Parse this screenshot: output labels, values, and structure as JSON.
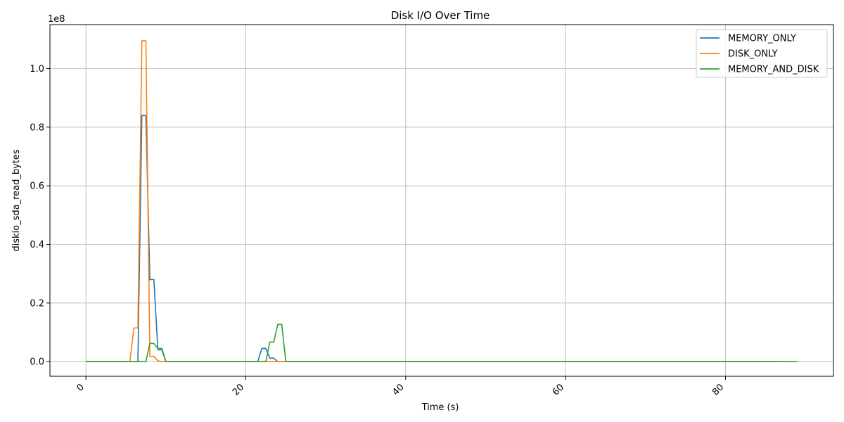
{
  "chart_data": {
    "type": "line",
    "title": "Disk I/O Over Time",
    "xlabel": "Time (s)",
    "ylabel": "diskio_sda_read_bytes",
    "y_offset_text": "1e8",
    "xlim": [
      -4.5,
      93.5
    ],
    "ylim": [
      -0.05,
      1.15
    ],
    "x_ticks": [
      0,
      20,
      40,
      60,
      80
    ],
    "x_tick_labels": [
      "0",
      "20",
      "40",
      "60",
      "80"
    ],
    "x_tick_rotation": 45,
    "y_ticks": [
      0.0,
      0.2,
      0.4,
      0.6,
      0.8,
      1.0
    ],
    "y_tick_labels": [
      "0.0",
      "0.2",
      "0.4",
      "0.6",
      "0.8",
      "1.0"
    ],
    "grid": true,
    "legend_position": "top-right",
    "series": [
      {
        "name": "MEMORY_ONLY",
        "color": "#1f77b4",
        "points": [
          [
            0,
            0
          ],
          [
            6.5,
            0
          ],
          [
            7,
            0.84
          ],
          [
            7.5,
            0.84
          ],
          [
            8,
            0.28
          ],
          [
            8.5,
            0.28
          ],
          [
            9,
            0.04
          ],
          [
            9.5,
            0.04
          ],
          [
            10,
            0
          ],
          [
            21.5,
            0
          ],
          [
            22,
            0.045
          ],
          [
            22.5,
            0.045
          ],
          [
            23,
            0.012
          ],
          [
            23.5,
            0.012
          ],
          [
            24,
            0
          ],
          [
            87,
            0
          ]
        ]
      },
      {
        "name": "DISK_ONLY",
        "color": "#ff7f0e",
        "points": [
          [
            0,
            0
          ],
          [
            5.5,
            0
          ],
          [
            6,
            0.115
          ],
          [
            6.5,
            0.115
          ],
          [
            7,
            1.095
          ],
          [
            7.5,
            1.095
          ],
          [
            8,
            0.018
          ],
          [
            8.5,
            0.018
          ],
          [
            9,
            0.003
          ],
          [
            9.5,
            0
          ],
          [
            23,
            0
          ],
          [
            24.5,
            0
          ],
          [
            25,
            0
          ],
          [
            84,
            0
          ]
        ]
      },
      {
        "name": "MEMORY_AND_DISK",
        "color": "#2ca02c",
        "points": [
          [
            0,
            0
          ],
          [
            7.5,
            0
          ],
          [
            8,
            0.062
          ],
          [
            8.5,
            0.062
          ],
          [
            9,
            0.045
          ],
          [
            9.5,
            0.045
          ],
          [
            10,
            0
          ],
          [
            22.5,
            0
          ],
          [
            23,
            0.067
          ],
          [
            23.5,
            0.067
          ],
          [
            24,
            0.127
          ],
          [
            24.5,
            0.127
          ],
          [
            25,
            0
          ],
          [
            89,
            0
          ]
        ]
      }
    ]
  }
}
